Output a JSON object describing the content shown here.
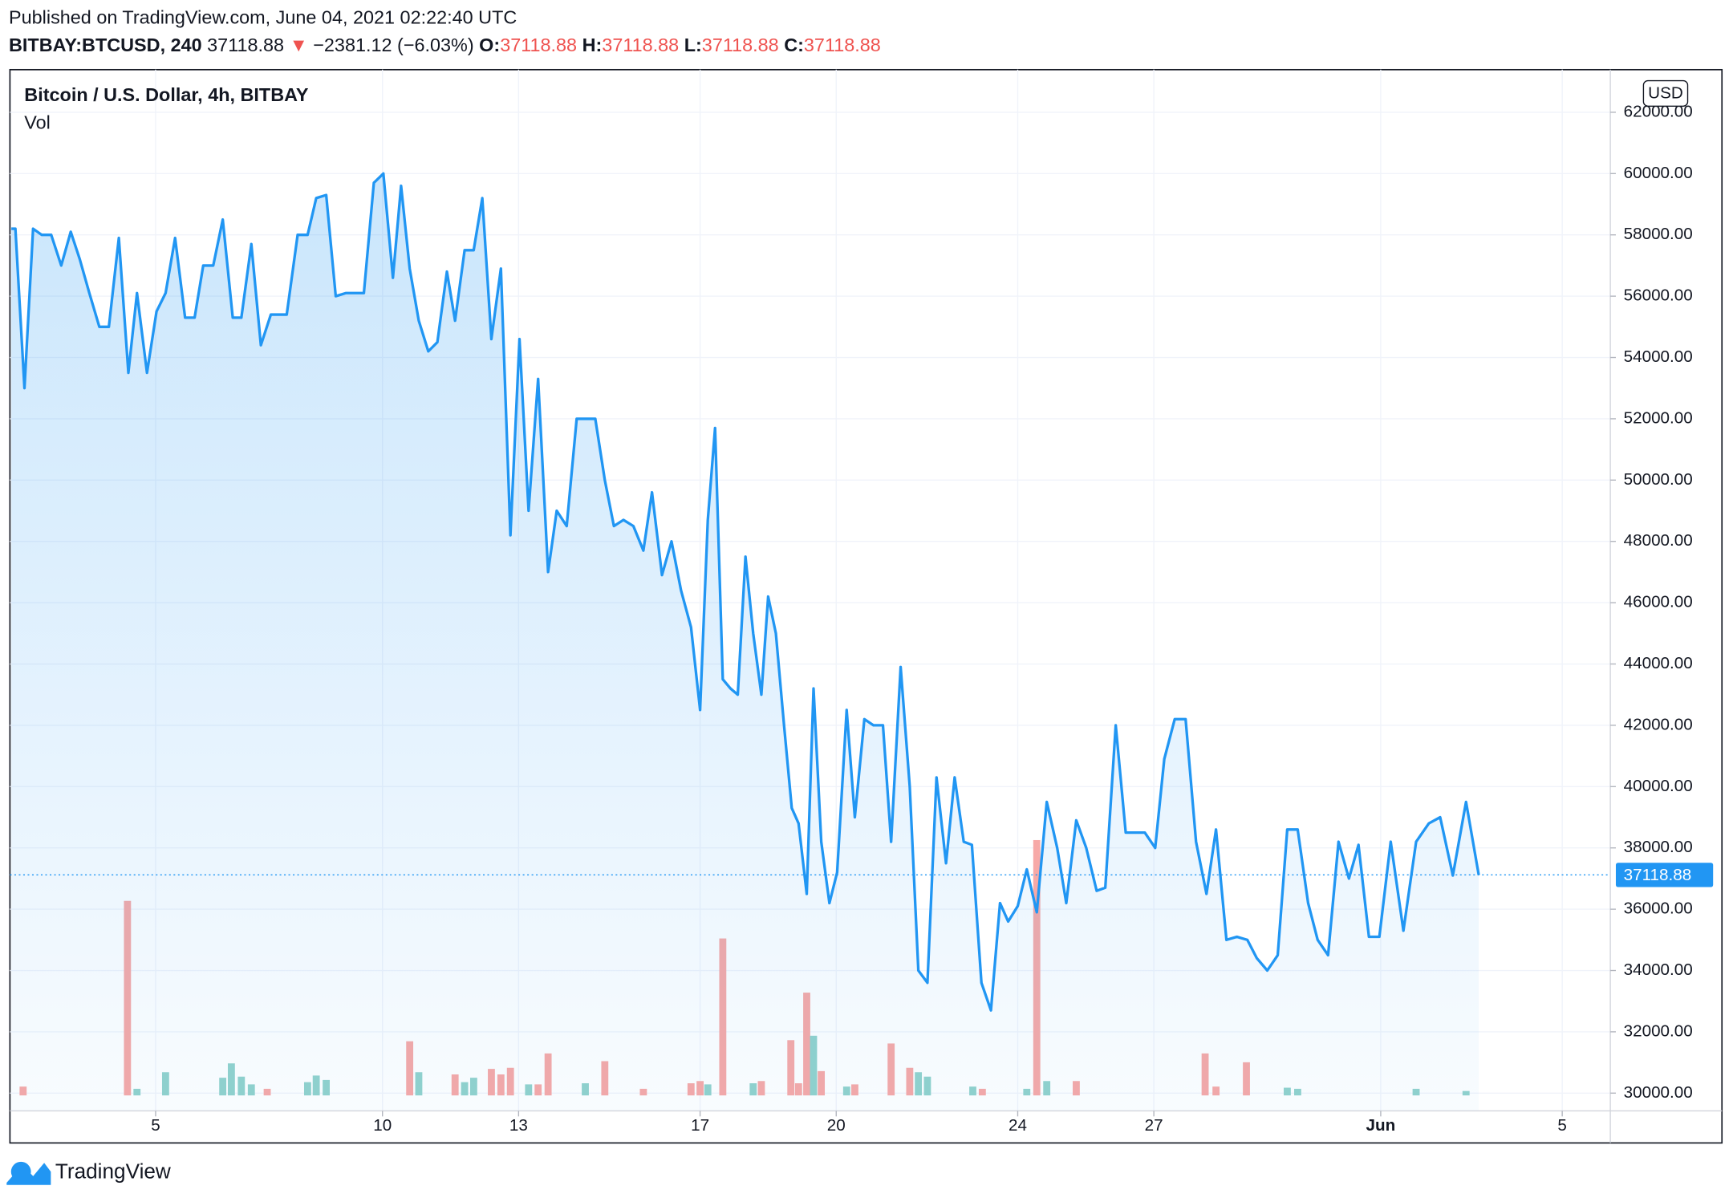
{
  "header": {
    "published": "Published on TradingView.com, June 04, 2021 02:22:40 UTC",
    "symbol": "BITBAY:BTCUSD, 240",
    "last": 37118.88,
    "arrow": "▼",
    "change": "−2381.12 (−6.03%)",
    "o_label": "O:",
    "open": 37118.88,
    "h_label": "H:",
    "high": 37118.88,
    "l_label": "L:",
    "low": 37118.88,
    "c_label": "C:",
    "close": 37118.88
  },
  "chart_data": {
    "type": "line",
    "title": "Bitcoin / U.S. Dollar, 4h, BITBAY",
    "volume_label": "Vol",
    "currency": "USD",
    "color": "#2196f3",
    "x": [
      1.82,
      1.91,
      2.11,
      2.3,
      2.49,
      2.7,
      2.92,
      3.13,
      3.33,
      3.54,
      3.76,
      3.97,
      4.19,
      4.4,
      4.59,
      4.81,
      5.02,
      5.22,
      5.43,
      5.65,
      5.86,
      6.05,
      6.27,
      6.48,
      6.7,
      6.89,
      7.11,
      7.32,
      7.54,
      7.89,
      8.13,
      8.35,
      8.54,
      8.76,
      8.97,
      9.19,
      9.59,
      9.81,
      10.02,
      10.23,
      10.41,
      10.6,
      10.8,
      11.01,
      11.21,
      11.42,
      11.6,
      11.81,
      12.01,
      12.2,
      12.4,
      12.61,
      12.82,
      13.02,
      13.22,
      13.43,
      13.65,
      13.84,
      14.06,
      14.28,
      14.49,
      14.69,
      14.9,
      15.1,
      15.31,
      15.53,
      15.75,
      15.94,
      16.16,
      16.37,
      16.58,
      16.8,
      17.0,
      17.17,
      17.33,
      17.5,
      17.67,
      17.83,
      18.0,
      18.17,
      18.35,
      18.5,
      18.67,
      18.85,
      19.02,
      19.17,
      19.35,
      19.5,
      19.67,
      19.85,
      20.02,
      20.23,
      20.41,
      20.62,
      20.82,
      21.03,
      21.21,
      21.42,
      21.62,
      21.81,
      22.01,
      22.21,
      22.42,
      22.61,
      22.81,
      22.99,
      23.2,
      23.41,
      23.61,
      23.79,
      24.0,
      24.2,
      24.42,
      24.64,
      24.87,
      25.07,
      25.29,
      25.51,
      25.74,
      25.93,
      26.16,
      26.38,
      26.58,
      26.8,
      27.03,
      27.23,
      27.46,
      27.7,
      27.93,
      28.16,
      28.37,
      28.6,
      28.83,
      29.06,
      29.27,
      29.5,
      29.73,
      29.94,
      30.17,
      30.4,
      30.61,
      30.84,
      31.07,
      31.3,
      31.51,
      31.74,
      31.97,
      32.22,
      32.5,
      32.78,
      33.06,
      33.31,
      33.59,
      33.88,
      34.16
    ],
    "values": [
      58200,
      58200,
      53000,
      58200,
      58000,
      58000,
      57000,
      58100,
      57200,
      56100,
      55000,
      55000,
      57900,
      53500,
      56100,
      53500,
      55500,
      56100,
      57900,
      55300,
      55300,
      57000,
      57000,
      58500,
      55300,
      55300,
      57700,
      54400,
      55400,
      55400,
      58000,
      58000,
      59200,
      59300,
      56000,
      56100,
      56100,
      59700,
      60000,
      56600,
      59600,
      56900,
      55200,
      54200,
      54500,
      56800,
      55200,
      57500,
      57500,
      59200,
      54600,
      56900,
      48200,
      54600,
      49000,
      53300,
      47000,
      49000,
      48500,
      52000,
      52000,
      52000,
      50000,
      48500,
      48700,
      48500,
      47700,
      49600,
      46900,
      48000,
      46400,
      45200,
      42500,
      48700,
      51700,
      43500,
      43200,
      43000,
      47500,
      45000,
      43000,
      46200,
      45000,
      42000,
      39300,
      38800,
      36500,
      43200,
      38200,
      36200,
      37200,
      42500,
      39000,
      42200,
      42000,
      42000,
      38200,
      43900,
      40000,
      34000,
      33600,
      40300,
      37500,
      40300,
      38200,
      38100,
      33600,
      32700,
      36200,
      35600,
      36100,
      37300,
      35900,
      39500,
      38000,
      36200,
      38900,
      38000,
      36600,
      36700,
      42000,
      38500,
      38500,
      38500,
      38000,
      40900,
      42200,
      42200,
      38200,
      36500,
      38600,
      35000,
      35100,
      35000,
      34400,
      34000,
      34500,
      38600,
      38600,
      36200,
      35000,
      34500,
      38200,
      37000,
      38100,
      35100,
      35100,
      38200,
      35300,
      38200,
      38800,
      39000,
      37100,
      39500,
      37118.88
    ],
    "volume": {
      "x": [
        2.08,
        4.38,
        4.59,
        5.22,
        6.48,
        6.67,
        6.89,
        7.11,
        7.46,
        8.35,
        8.54,
        8.76,
        10.6,
        10.8,
        11.6,
        11.81,
        12.01,
        12.4,
        12.61,
        12.82,
        13.22,
        13.43,
        13.65,
        14.47,
        14.9,
        15.75,
        16.8,
        17.0,
        17.17,
        17.5,
        18.17,
        18.35,
        19.0,
        19.17,
        19.35,
        19.5,
        19.67,
        20.23,
        20.41,
        21.21,
        21.62,
        21.81,
        22.01,
        23.01,
        23.22,
        24.2,
        24.42,
        24.64,
        25.29,
        28.13,
        28.37,
        29.04,
        29.94,
        30.17,
        32.78,
        33.88
      ],
      "values": [
        8,
        176,
        6,
        21,
        16,
        29,
        17,
        10,
        6,
        12,
        18,
        14,
        49,
        21,
        19,
        12,
        16,
        24,
        19,
        25,
        10,
        10,
        38,
        11,
        31,
        6,
        11,
        13,
        10,
        142,
        11,
        13,
        50,
        11,
        93,
        54,
        22,
        8,
        10,
        47,
        25,
        21,
        17,
        8,
        6,
        6,
        231,
        13,
        13,
        38,
        8,
        30,
        7,
        6,
        6,
        4
      ],
      "colors": [
        "#f7a9a7",
        "#f7a9a7",
        "#92d2cc",
        "#92d2cc",
        "#92d2cc",
        "#92d2cc",
        "#92d2cc",
        "#92d2cc",
        "#f7a9a7",
        "#92d2cc",
        "#92d2cc",
        "#92d2cc",
        "#f7a9a7",
        "#92d2cc",
        "#f7a9a7",
        "#92d2cc",
        "#92d2cc",
        "#f7a9a7",
        "#f7a9a7",
        "#f7a9a7",
        "#92d2cc",
        "#f7a9a7",
        "#f7a9a7",
        "#92d2cc",
        "#f7a9a7",
        "#f7a9a7",
        "#f7a9a7",
        "#f7a9a7",
        "#92d2cc",
        "#f7a9a7",
        "#92d2cc",
        "#f7a9a7",
        "#f7a9a7",
        "#f7a9a7",
        "#f7a9a7",
        "#92d2cc",
        "#f7a9a7",
        "#92d2cc",
        "#f7a9a7",
        "#f7a9a7",
        "#f7a9a7",
        "#92d2cc",
        "#92d2cc",
        "#92d2cc",
        "#f7a9a7",
        "#92d2cc",
        "#f7a9a7",
        "#92d2cc",
        "#f7a9a7",
        "#f7a9a7",
        "#f7a9a7",
        "#f7a9a7",
        "#92d2cc",
        "#92d2cc",
        "#92d2cc",
        "#92d2cc"
      ]
    },
    "xlim": [
      1.79,
      37.06
    ],
    "xticks": [
      5,
      10,
      13,
      17,
      20,
      24,
      27,
      {
        "value": 32,
        "label": "Jun"
      },
      {
        "value": 36,
        "label": "5"
      }
    ],
    "ylim": [
      29420,
      63390
    ],
    "yticks": [
      {
        "value": 30000,
        "label": "30000.00"
      },
      {
        "value": 32000,
        "label": "32000.00"
      },
      {
        "value": 34000,
        "label": "34000.00"
      },
      {
        "value": 36000,
        "label": "36000.00"
      },
      {
        "value": 38000,
        "label": "38000.00"
      },
      {
        "value": 40000,
        "label": "40000.00"
      },
      {
        "value": 42000,
        "label": "42000.00"
      },
      {
        "value": 44000,
        "label": "44000.00"
      },
      {
        "value": 46000,
        "label": "46000.00"
      },
      {
        "value": 48000,
        "label": "48000.00"
      },
      {
        "value": 50000,
        "label": "50000.00"
      },
      {
        "value": 52000,
        "label": "52000.00"
      },
      {
        "value": 54000,
        "label": "54000.00"
      },
      {
        "value": 56000,
        "label": "56000.00"
      },
      {
        "value": 58000,
        "label": "58000.00"
      },
      {
        "value": 60000,
        "label": "60000.00"
      },
      {
        "value": 62000,
        "label": "62000.00"
      }
    ],
    "grid": true
  },
  "footer": {
    "brand": "TradingView"
  }
}
